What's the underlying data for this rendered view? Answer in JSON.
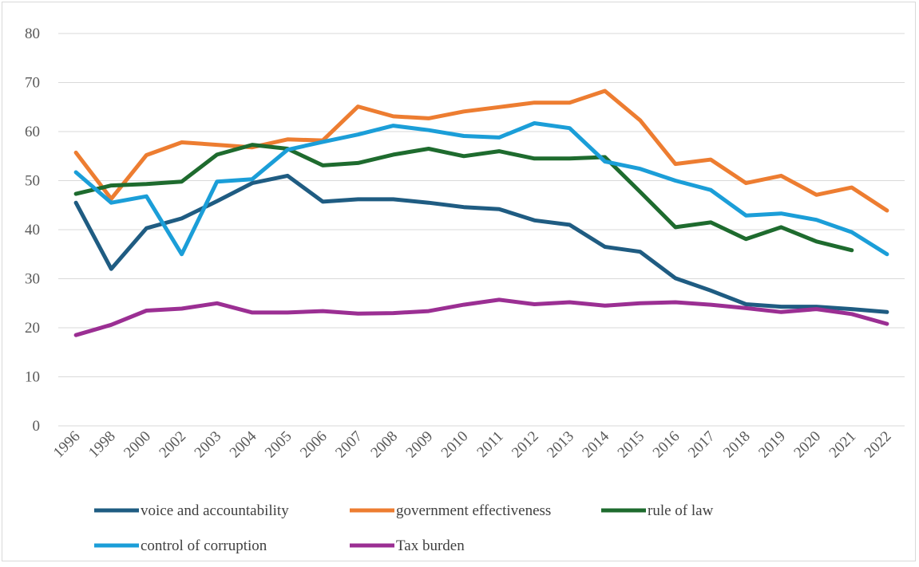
{
  "chart_data": {
    "type": "line",
    "categories": [
      "1996",
      "1998",
      "2000",
      "2002",
      "2003",
      "2004",
      "2005",
      "2006",
      "2007",
      "2008",
      "2009",
      "2010",
      "2011",
      "2012",
      "2013",
      "2014",
      "2015",
      "2016",
      "2017",
      "2018",
      "2019",
      "2020",
      "2021",
      "2022"
    ],
    "ylim": [
      0,
      80
    ],
    "yticks": [
      0,
      10,
      20,
      30,
      40,
      50,
      60,
      70,
      80
    ],
    "grid": true,
    "legend_position": "bottom",
    "series": [
      {
        "name": "voice and accountability",
        "color": "#1f5c82",
        "values": [
          45.5,
          32,
          40.3,
          42.3,
          45.8,
          49.5,
          51,
          45.7,
          46.2,
          46.2,
          45.5,
          44.6,
          44.2,
          41.9,
          41,
          36.5,
          35.5,
          30.1,
          27.6,
          24.8,
          24.3,
          24.3,
          23.8,
          23.2
        ]
      },
      {
        "name": "government effectiveness",
        "color": "#ed7d31",
        "values": [
          55.7,
          46.3,
          55.2,
          57.8,
          57.3,
          56.8,
          58.4,
          58.2,
          65.1,
          63.1,
          62.7,
          64.1,
          65,
          65.9,
          65.9,
          68.3,
          62.3,
          53.4,
          54.3,
          49.5,
          51,
          47.1,
          48.6,
          43.9
        ]
      },
      {
        "name": "rule of law",
        "color": "#1e6b2e",
        "values": [
          47.3,
          49,
          49.3,
          49.8,
          55.3,
          57.3,
          56.5,
          53.1,
          53.6,
          55.3,
          56.5,
          55,
          56,
          54.5,
          54.5,
          54.8,
          47.7,
          40.5,
          41.5,
          38.1,
          40.5,
          37.6,
          35.8,
          null
        ]
      },
      {
        "name": "control of corruption",
        "color": "#1b9ed8",
        "values": [
          51.7,
          45.5,
          46.8,
          35,
          49.8,
          50.3,
          56.3,
          57.9,
          59.4,
          61.2,
          60.3,
          59.1,
          58.8,
          61.7,
          60.7,
          53.9,
          52.4,
          50,
          48.1,
          42.9,
          43.3,
          42,
          39.5,
          35
        ]
      },
      {
        "name": "Tax burden",
        "color": "#9b2f93",
        "values": [
          18.5,
          20.6,
          23.5,
          23.9,
          25,
          23.1,
          23.1,
          23.4,
          22.9,
          23,
          23.4,
          24.7,
          25.7,
          24.8,
          25.2,
          24.5,
          25,
          25.2,
          24.7,
          24,
          23.2,
          23.8,
          22.8,
          20.8
        ]
      }
    ]
  }
}
